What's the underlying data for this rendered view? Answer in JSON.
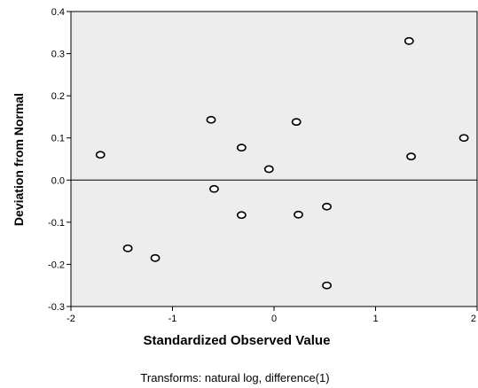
{
  "chart_data": {
    "type": "scatter",
    "xlabel": "Standardized Observed Value",
    "ylabel": "Deviation from Normal",
    "footnote": "Transforms: natural log, difference(1)",
    "xlim": [
      -2,
      2
    ],
    "ylim": [
      -0.3,
      0.4
    ],
    "x_ticks": [
      -2,
      -1,
      0,
      1,
      2
    ],
    "x_tick_labels": [
      "-2",
      "-1",
      "0",
      "1",
      "2"
    ],
    "y_ticks": [
      -0.3,
      -0.2,
      -0.1,
      0.0,
      0.1,
      0.2,
      0.3,
      0.4
    ],
    "y_tick_labels": [
      "-0.3",
      "-0.2",
      "-0.1",
      "0.0",
      "0.1",
      "0.2",
      "0.3",
      "0.4"
    ],
    "reference_line_y": 0,
    "grid": false,
    "colors": {
      "plot_background": "#ededed",
      "marker_stroke": "#000000",
      "marker_fill": "#ffffff"
    },
    "points": [
      {
        "x": -1.71,
        "y": 0.06
      },
      {
        "x": -1.44,
        "y": -0.162
      },
      {
        "x": -1.17,
        "y": -0.185
      },
      {
        "x": -0.62,
        "y": 0.143
      },
      {
        "x": -0.59,
        "y": -0.021
      },
      {
        "x": -0.32,
        "y": 0.077
      },
      {
        "x": -0.32,
        "y": -0.083
      },
      {
        "x": -0.05,
        "y": 0.026
      },
      {
        "x": 0.22,
        "y": 0.138
      },
      {
        "x": 0.24,
        "y": -0.082
      },
      {
        "x": 0.52,
        "y": -0.063
      },
      {
        "x": 0.52,
        "y": -0.25
      },
      {
        "x": 1.33,
        "y": 0.33
      },
      {
        "x": 1.35,
        "y": 0.056
      },
      {
        "x": 1.87,
        "y": 0.1
      }
    ]
  }
}
